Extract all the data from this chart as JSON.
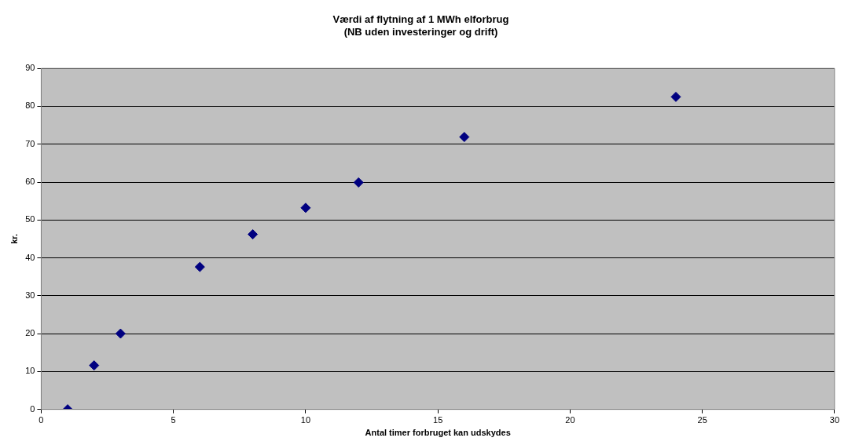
{
  "chart_data": {
    "type": "scatter",
    "title": [
      "Værdi af flytning af 1 MWh elforbrug",
      "(NB uden investeringer og drift)"
    ],
    "xlabel": "Antal timer forbruget kan udskydes",
    "ylabel": "kr.",
    "x": [
      1,
      2,
      3,
      6,
      8,
      10,
      12,
      16,
      24
    ],
    "series": [
      {
        "color": "#000080",
        "values": [
          0,
          11.6,
          20,
          37.6,
          46.2,
          53.2,
          59.9,
          71.9,
          82.5
        ]
      }
    ],
    "xlim": [
      0,
      30
    ],
    "xticks": [
      0,
      5,
      10,
      15,
      20,
      25,
      30
    ],
    "ylim": [
      0,
      90
    ],
    "yticks": [
      0,
      10,
      20,
      30,
      40,
      50,
      60,
      70,
      80,
      90
    ],
    "grid": "y",
    "legend": false,
    "marker": "diamond"
  }
}
